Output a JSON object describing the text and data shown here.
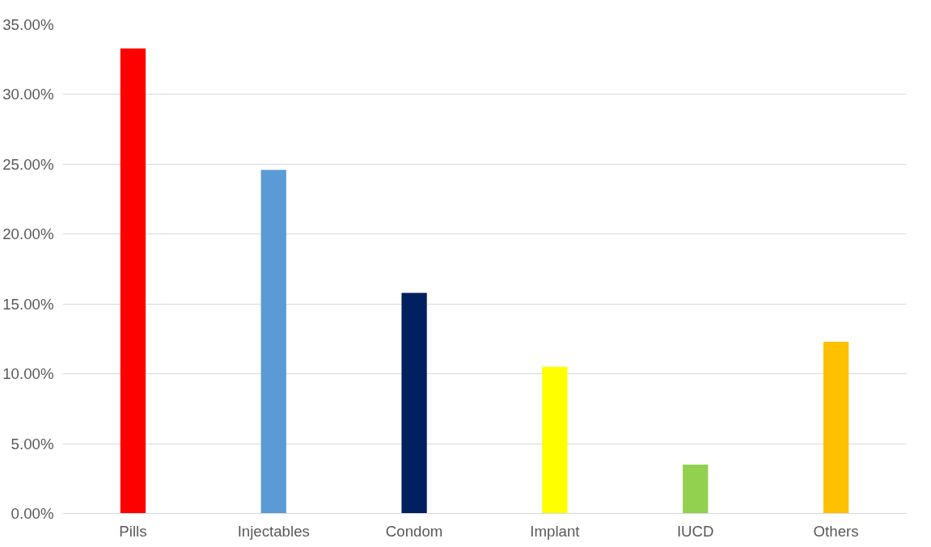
{
  "chart_data": {
    "type": "bar",
    "categories": [
      "Pills",
      "Injectables",
      "Condom",
      "Implant",
      "IUCD",
      "Others"
    ],
    "values": [
      33.3,
      24.6,
      15.8,
      10.5,
      3.5,
      12.3
    ],
    "colors": [
      "#ff0000",
      "#5b9bd5",
      "#002060",
      "#ffff00",
      "#92d050",
      "#ffc000"
    ],
    "ylim": [
      0,
      35
    ],
    "yticks": [
      {
        "value": 0,
        "label": "0.00%"
      },
      {
        "value": 5,
        "label": "5.00%"
      },
      {
        "value": 10,
        "label": "10.00%"
      },
      {
        "value": 15,
        "label": "15.00%"
      },
      {
        "value": 20,
        "label": "20.00%"
      },
      {
        "value": 25,
        "label": "25.00%"
      },
      {
        "value": 30,
        "label": "30.00%"
      },
      {
        "value": 35,
        "label": "35.00%"
      }
    ],
    "grid": "y"
  }
}
